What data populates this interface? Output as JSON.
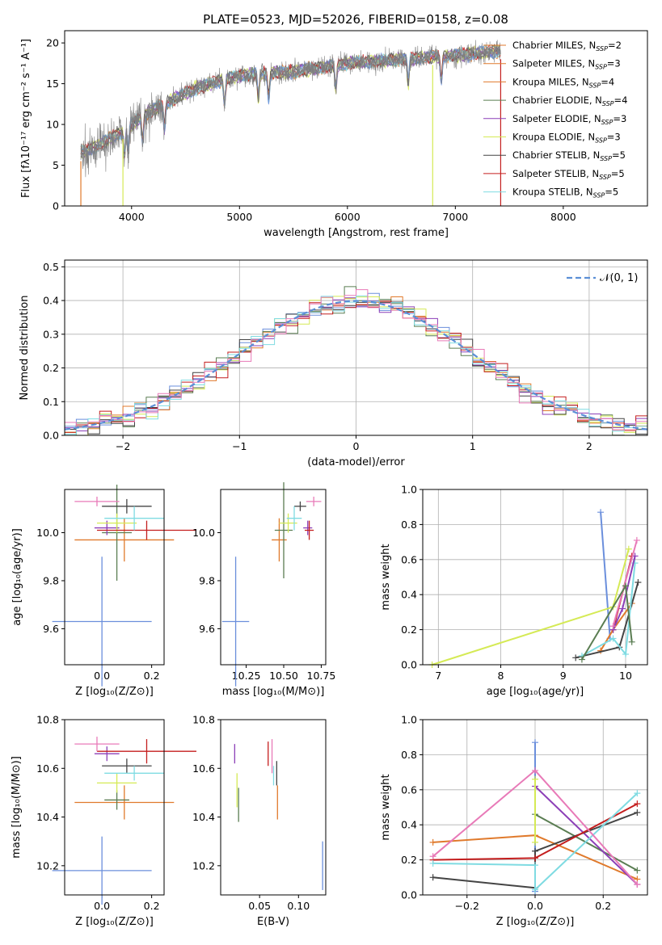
{
  "figure_title": "PLATE=0523, MJD=52026, FIBERID=0158, z=0.08",
  "colors": {
    "Chabrier MILES": "#6b8fdc",
    "Salpeter MILES": "#e07a2c",
    "Kroupa MILES": "#5a7d52",
    "Chabrier ELODIE": "#8c3fb7",
    "Salpeter ELODIE": "#d5ea55",
    "Kroupa ELODIE": "#444444",
    "Chabrier STELIB": "#c41e1e",
    "Salpeter STELIB": "#7fdbe2",
    "Kroupa STELIB": "#e87ab8",
    "data": "#7f7f7f",
    "normal": "#5b8fd6"
  },
  "chart_data": [
    {
      "id": "spectrum",
      "type": "line",
      "title": "PLATE=0523, MJD=52026, FIBERID=0158, z=0.08",
      "xlabel": "wavelength [Angstrom, rest frame]",
      "ylabel": "Flux [fλ10⁻¹⁷ erg cm⁻² s⁻¹ A⁻¹]",
      "xlim": [
        3380,
        8780
      ],
      "ylim": [
        0,
        21.5
      ],
      "xticks": [
        4000,
        5000,
        6000,
        7000,
        8000
      ],
      "yticks": [
        0,
        5,
        10,
        15,
        20
      ],
      "legend_position": "right",
      "legend": [
        {
          "label": "Chabrier MILES, N",
          "sub": "SSP",
          "tail": "=2",
          "color": "#e07a2c"
        },
        {
          "label": "Salpeter MILES, N",
          "sub": "SSP",
          "tail": "=3",
          "color": "#e07a2c"
        },
        {
          "label": "Kroupa MILES, N",
          "sub": "SSP",
          "tail": "=4",
          "color": "#e07a2c"
        },
        {
          "label": "Chabrier ELODIE, N",
          "sub": "SSP",
          "tail": "=4",
          "color": "#5a7d52"
        },
        {
          "label": "Salpeter ELODIE, N",
          "sub": "SSP",
          "tail": "=3",
          "color": "#8c3fb7"
        },
        {
          "label": "Kroupa ELODIE, N",
          "sub": "SSP",
          "tail": "=3",
          "color": "#d5ea55"
        },
        {
          "label": "Chabrier STELIB, N",
          "sub": "SSP",
          "tail": "=5",
          "color": "#444444"
        },
        {
          "label": "Salpeter STELIB, N",
          "sub": "SSP",
          "tail": "=5",
          "color": "#c41e1e"
        },
        {
          "label": "Kroupa STELIB, N",
          "sub": "SSP",
          "tail": "=5",
          "color": "#7fdbe2"
        }
      ],
      "continuum": [
        [
          3530,
          6.5
        ],
        [
          3700,
          7.5
        ],
        [
          3900,
          9.0
        ],
        [
          4100,
          11.0
        ],
        [
          4300,
          12.5
        ],
        [
          4600,
          14.5
        ],
        [
          5000,
          16.0
        ],
        [
          5500,
          16.5
        ],
        [
          6000,
          17.5
        ],
        [
          6500,
          18.0
        ],
        [
          7000,
          18.5
        ],
        [
          7420,
          19.0
        ]
      ],
      "x_start": 3530,
      "x_end": 7420,
      "drop_lines": [
        {
          "x": 3530,
          "color": "#e07a2c"
        },
        {
          "x": 3920,
          "color": "#d5ea55"
        },
        {
          "x": 6790,
          "color": "#d5ea55"
        },
        {
          "x": 7420,
          "color": "#c41e1e"
        }
      ]
    },
    {
      "id": "residuals",
      "type": "histogram",
      "xlabel": "(data-model)/error",
      "ylabel": "Normed distribution",
      "xlim": [
        -2.5,
        2.5
      ],
      "ylim": [
        0,
        0.52
      ],
      "xticks": [
        -2,
        -1,
        0,
        1,
        2
      ],
      "yticks": [
        0.0,
        0.1,
        0.2,
        0.3,
        0.4,
        0.5
      ],
      "grid": true,
      "legend_position": "top-right",
      "legend": [
        {
          "label": "𝒩(0, 1)",
          "color": "#5b8fd6",
          "dashed": true
        }
      ],
      "bin_width": 0.1,
      "normal": {
        "mean": 0,
        "sigma": 1
      }
    },
    {
      "id": "age_vs_Z",
      "type": "errorbar",
      "xlabel": "Z [log₁₀(Z/Z⊙)]",
      "ylabel": "age  [log₁₀(age/yr)]",
      "xlim": [
        -0.15,
        0.25
      ],
      "ylim": [
        9.45,
        10.18
      ],
      "xticks": [
        0.0,
        0.2
      ],
      "yticks": [
        9.6,
        9.8,
        10.0
      ],
      "points": [
        {
          "x": 0.0,
          "y": 9.63,
          "xerr": 0.2,
          "yerr": 0.27,
          "color": "#6b8fdc"
        },
        {
          "x": 0.09,
          "y": 9.97,
          "xerr": 0.2,
          "yerr": 0.09,
          "color": "#e07a2c"
        },
        {
          "x": 0.06,
          "y": 10.0,
          "xerr": 0.06,
          "yerr": 0.2,
          "color": "#5a7d52"
        },
        {
          "x": 0.02,
          "y": 10.02,
          "xerr": 0.05,
          "yerr": 0.03,
          "color": "#8c3fb7"
        },
        {
          "x": 0.06,
          "y": 10.04,
          "xerr": 0.08,
          "yerr": 0.04,
          "color": "#d5ea55"
        },
        {
          "x": 0.1,
          "y": 10.11,
          "xerr": 0.1,
          "yerr": 0.03,
          "color": "#444444"
        },
        {
          "x": 0.18,
          "y": 10.01,
          "xerr": 0.2,
          "yerr": 0.04,
          "color": "#c41e1e"
        },
        {
          "x": 0.13,
          "y": 10.06,
          "xerr": 0.12,
          "yerr": 0.05,
          "color": "#7fdbe2"
        },
        {
          "x": -0.02,
          "y": 10.13,
          "xerr": 0.09,
          "yerr": 0.02,
          "color": "#e87ab8"
        }
      ]
    },
    {
      "id": "age_vs_mass",
      "type": "errorbar",
      "xlabel": "mass [log₁₀(M/M⊙)]",
      "ylabel": "",
      "xlim": [
        10.08,
        10.78
      ],
      "ylim": [
        9.45,
        10.18
      ],
      "xticks": [
        10.25,
        10.5,
        10.75
      ],
      "yticks": [
        9.6,
        9.8,
        10.0
      ],
      "points": [
        {
          "x": 10.18,
          "y": 9.63,
          "xerr": 0.09,
          "yerr": 0.27,
          "color": "#6b8fdc"
        },
        {
          "x": 10.47,
          "y": 9.97,
          "xerr": 0.05,
          "yerr": 0.09,
          "color": "#e07a2c"
        },
        {
          "x": 10.5,
          "y": 10.01,
          "xerr": 0.06,
          "yerr": 0.2,
          "color": "#5a7d52"
        },
        {
          "x": 10.66,
          "y": 10.02,
          "xerr": 0.03,
          "yerr": 0.03,
          "color": "#8c3fb7"
        },
        {
          "x": 10.53,
          "y": 10.04,
          "xerr": 0.06,
          "yerr": 0.04,
          "color": "#d5ea55"
        },
        {
          "x": 10.61,
          "y": 10.11,
          "xerr": 0.04,
          "yerr": 0.02,
          "color": "#444444"
        },
        {
          "x": 10.67,
          "y": 10.01,
          "xerr": 0.03,
          "yerr": 0.04,
          "color": "#c41e1e"
        },
        {
          "x": 10.57,
          "y": 10.06,
          "xerr": 0.05,
          "yerr": 0.05,
          "color": "#7fdbe2"
        },
        {
          "x": 10.7,
          "y": 10.13,
          "xerr": 0.05,
          "yerr": 0.02,
          "color": "#e87ab8"
        }
      ]
    },
    {
      "id": "weight_vs_age",
      "type": "line",
      "xlabel": "age  [log₁₀(age/yr)]",
      "ylabel": "mass weight",
      "xlim": [
        6.75,
        10.35
      ],
      "ylim": [
        0,
        1.0
      ],
      "xticks": [
        7,
        8,
        9,
        10
      ],
      "yticks": [
        0.0,
        0.2,
        0.4,
        0.6,
        0.8,
        1.0
      ],
      "grid": true,
      "series": [
        {
          "color": "#6b8fdc",
          "points": [
            [
              9.6,
              0.87
            ],
            [
              9.75,
              0.15
            ]
          ]
        },
        {
          "color": "#e07a2c",
          "points": [
            [
              9.6,
              0.08
            ],
            [
              9.8,
              0.2
            ],
            [
              10.1,
              0.35
            ]
          ]
        },
        {
          "color": "#d5ea55",
          "points": [
            [
              6.9,
              0.0
            ],
            [
              9.8,
              0.33
            ],
            [
              10.05,
              0.66
            ]
          ]
        },
        {
          "color": "#444444",
          "points": [
            [
              9.2,
              0.04
            ],
            [
              9.9,
              0.1
            ],
            [
              10.2,
              0.47
            ]
          ]
        },
        {
          "color": "#c41e1e",
          "points": [
            [
              9.8,
              0.2
            ],
            [
              10.1,
              0.62
            ]
          ]
        },
        {
          "color": "#7fdbe2",
          "points": [
            [
              9.3,
              0.05
            ],
            [
              9.8,
              0.15
            ],
            [
              10.0,
              0.06
            ],
            [
              10.15,
              0.58
            ]
          ]
        },
        {
          "color": "#8c3fb7",
          "points": [
            [
              9.8,
              0.2
            ],
            [
              9.95,
              0.32
            ],
            [
              10.15,
              0.62
            ]
          ]
        },
        {
          "color": "#e87ab8",
          "points": [
            [
              9.8,
              0.22
            ],
            [
              10.18,
              0.71
            ]
          ]
        },
        {
          "color": "#5a7d52",
          "points": [
            [
              9.3,
              0.03
            ],
            [
              10.0,
              0.45
            ],
            [
              10.1,
              0.13
            ]
          ]
        }
      ]
    },
    {
      "id": "mass_vs_Z",
      "type": "errorbar",
      "xlabel": "Z [log₁₀(Z/Z⊙)]",
      "ylabel": "mass [log₁₀(M/M⊙)]",
      "xlim": [
        -0.15,
        0.25
      ],
      "ylim": [
        10.08,
        10.8
      ],
      "xticks": [
        0.0,
        0.2
      ],
      "yticks": [
        10.2,
        10.4,
        10.6,
        10.8
      ],
      "points": [
        {
          "x": 0.0,
          "y": 10.18,
          "xerr": 0.2,
          "yerr": 0.14,
          "color": "#6b8fdc"
        },
        {
          "x": 0.09,
          "y": 10.46,
          "xerr": 0.2,
          "yerr": 0.07,
          "color": "#e07a2c"
        },
        {
          "x": 0.06,
          "y": 10.47,
          "xerr": 0.05,
          "yerr": 0.04,
          "color": "#5a7d52"
        },
        {
          "x": 0.02,
          "y": 10.66,
          "xerr": 0.05,
          "yerr": 0.03,
          "color": "#8c3fb7"
        },
        {
          "x": 0.06,
          "y": 10.54,
          "xerr": 0.08,
          "yerr": 0.04,
          "color": "#d5ea55"
        },
        {
          "x": 0.1,
          "y": 10.61,
          "xerr": 0.1,
          "yerr": 0.03,
          "color": "#444444"
        },
        {
          "x": 0.18,
          "y": 10.67,
          "xerr": 0.2,
          "yerr": 0.05,
          "color": "#c41e1e"
        },
        {
          "x": 0.13,
          "y": 10.58,
          "xerr": 0.12,
          "yerr": 0.03,
          "color": "#7fdbe2"
        },
        {
          "x": -0.02,
          "y": 10.7,
          "xerr": 0.09,
          "yerr": 0.03,
          "color": "#e87ab8"
        }
      ]
    },
    {
      "id": "mass_vs_ebv",
      "type": "errorbar",
      "xlabel": "E(B-V)",
      "ylabel": "",
      "xlim": [
        0.0,
        0.135
      ],
      "ylim": [
        10.08,
        10.8
      ],
      "xticks": [
        0.05,
        0.1
      ],
      "yticks": [
        10.2,
        10.4,
        10.6,
        10.8
      ],
      "points": [
        {
          "x": 0.131,
          "y": 10.2,
          "xerr": 0,
          "yerr": 0.1,
          "color": "#6b8fdc"
        },
        {
          "x": 0.073,
          "y": 10.46,
          "xerr": 0,
          "yerr": 0.07,
          "color": "#e07a2c"
        },
        {
          "x": 0.023,
          "y": 10.45,
          "xerr": 0,
          "yerr": 0.07,
          "color": "#5a7d52"
        },
        {
          "x": 0.018,
          "y": 10.66,
          "xerr": 0,
          "yerr": 0.04,
          "color": "#8c3fb7"
        },
        {
          "x": 0.021,
          "y": 10.51,
          "xerr": 0,
          "yerr": 0.07,
          "color": "#d5ea55"
        },
        {
          "x": 0.072,
          "y": 10.58,
          "xerr": 0,
          "yerr": 0.05,
          "color": "#444444"
        },
        {
          "x": 0.061,
          "y": 10.66,
          "xerr": 0,
          "yerr": 0.05,
          "color": "#c41e1e"
        },
        {
          "x": 0.068,
          "y": 10.57,
          "xerr": 0,
          "yerr": 0.04,
          "color": "#7fdbe2"
        },
        {
          "x": 0.066,
          "y": 10.65,
          "xerr": 0,
          "yerr": 0.07,
          "color": "#e87ab8"
        }
      ]
    },
    {
      "id": "weight_vs_Z",
      "type": "line",
      "xlabel": "Z [log₁₀(Z/Z⊙)]",
      "ylabel": "mass weight",
      "xlim": [
        -0.33,
        0.33
      ],
      "ylim": [
        0,
        1.0
      ],
      "xticks": [
        -0.2,
        0.0,
        0.2
      ],
      "yticks": [
        0.0,
        0.2,
        0.4,
        0.6,
        0.8,
        1.0
      ],
      "grid": true,
      "series": [
        {
          "color": "#6b8fdc",
          "points": [
            [
              0.0,
              0.87
            ],
            [
              0.0,
              0.02
            ]
          ]
        },
        {
          "color": "#e07a2c",
          "points": [
            [
              -0.3,
              0.3
            ],
            [
              0.0,
              0.34
            ],
            [
              0.3,
              0.09
            ]
          ]
        },
        {
          "color": "#5a7d52",
          "points": [
            [
              0.0,
              0.46
            ],
            [
              0.3,
              0.14
            ]
          ]
        },
        {
          "color": "#8c3fb7",
          "points": [
            [
              0.0,
              0.62
            ],
            [
              0.3,
              0.06
            ]
          ]
        },
        {
          "color": "#d5ea55",
          "points": [
            [
              0.0,
              0.66
            ],
            [
              0.0,
              0.3
            ]
          ]
        },
        {
          "color": "#444444",
          "points": [
            [
              -0.3,
              0.1
            ],
            [
              0.0,
              0.04
            ],
            [
              0.0,
              0.25
            ],
            [
              0.3,
              0.47
            ]
          ]
        },
        {
          "color": "#c41e1e",
          "points": [
            [
              -0.3,
              0.2
            ],
            [
              0.0,
              0.21
            ],
            [
              0.3,
              0.52
            ]
          ]
        },
        {
          "color": "#7fdbe2",
          "points": [
            [
              -0.3,
              0.18
            ],
            [
              0.0,
              0.17
            ],
            [
              0.0,
              0.03
            ],
            [
              0.3,
              0.58
            ]
          ]
        },
        {
          "color": "#e87ab8",
          "points": [
            [
              -0.3,
              0.22
            ],
            [
              0.0,
              0.71
            ],
            [
              0.3,
              0.06
            ]
          ]
        }
      ]
    }
  ]
}
